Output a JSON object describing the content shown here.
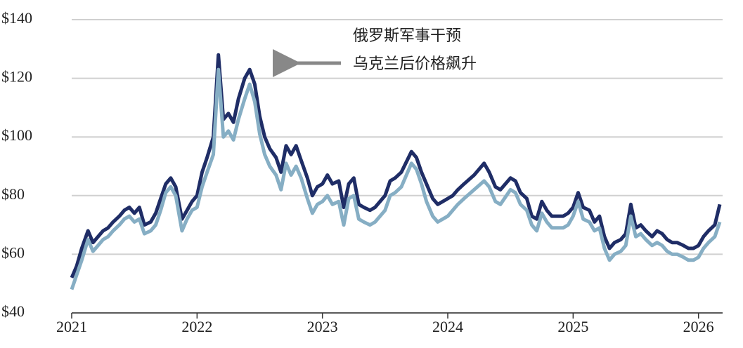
{
  "chart_data": {
    "type": "line",
    "annotation": [
      "俄罗斯军事干预",
      "乌克兰后价格飙升"
    ],
    "x": [
      2021.0,
      2021.04,
      2021.08,
      2021.13,
      2021.17,
      2021.21,
      2021.25,
      2021.29,
      2021.33,
      2021.38,
      2021.42,
      2021.46,
      2021.5,
      2021.54,
      2021.58,
      2021.63,
      2021.67,
      2021.71,
      2021.75,
      2021.79,
      2021.83,
      2021.88,
      2021.92,
      2021.96,
      2022.0,
      2022.04,
      2022.08,
      2022.13,
      2022.17,
      2022.21,
      2022.25,
      2022.29,
      2022.33,
      2022.38,
      2022.42,
      2022.46,
      2022.5,
      2022.54,
      2022.58,
      2022.63,
      2022.67,
      2022.71,
      2022.75,
      2022.79,
      2022.83,
      2022.88,
      2022.92,
      2022.96,
      2023.0,
      2023.04,
      2023.08,
      2023.13,
      2023.17,
      2023.21,
      2023.25,
      2023.29,
      2023.33,
      2023.38,
      2023.42,
      2023.5,
      2023.54,
      2023.58,
      2023.63,
      2023.71,
      2023.75,
      2023.79,
      2023.83,
      2023.88,
      2023.92,
      2023.96,
      2024.0,
      2024.04,
      2024.08,
      2024.13,
      2024.21,
      2024.29,
      2024.33,
      2024.38,
      2024.42,
      2024.5,
      2024.54,
      2024.58,
      2024.63,
      2024.67,
      2024.71,
      2024.75,
      2024.79,
      2024.83,
      2024.88,
      2024.92,
      2024.96,
      2025.0,
      2025.04,
      2025.08,
      2025.13,
      2025.17,
      2025.21,
      2025.25,
      2025.29,
      2025.33,
      2025.38,
      2025.42,
      2025.46,
      2025.5,
      2025.54,
      2025.58,
      2025.63,
      2025.67,
      2025.71,
      2025.75,
      2025.79,
      2025.83,
      2025.88,
      2025.92,
      2025.96,
      2026.0,
      2026.04,
      2026.08,
      2026.13,
      2026.17
    ],
    "series": [
      {
        "color": "#1f2d66",
        "values": [
          52,
          56,
          62,
          68,
          64,
          66,
          68,
          69,
          71,
          73,
          75,
          76,
          74,
          76,
          70,
          71,
          74,
          79,
          84,
          86,
          83,
          72,
          75,
          78,
          80,
          88,
          93,
          100,
          128,
          106,
          108,
          105,
          113,
          120,
          123,
          118,
          107,
          100,
          96,
          93,
          88,
          97,
          94,
          97,
          92,
          86,
          80,
          83,
          84,
          87,
          84,
          85,
          76,
          84,
          86,
          77,
          76,
          75,
          76,
          80,
          85,
          86,
          88,
          95,
          93,
          88,
          84,
          79,
          77,
          78,
          79,
          80,
          82,
          84,
          87,
          91,
          88,
          83,
          82,
          86,
          85,
          81,
          79,
          73,
          72,
          78,
          75,
          73,
          73,
          73,
          74,
          76,
          81,
          76,
          75,
          71,
          73,
          66,
          62,
          64,
          65,
          67,
          77,
          69,
          70,
          68,
          66,
          68,
          67,
          65,
          64,
          64,
          63,
          62,
          62,
          63,
          66,
          68,
          70,
          77
        ]
      },
      {
        "color": "#86aec4",
        "values": [
          48,
          53,
          58,
          65,
          61,
          63,
          65,
          66,
          68,
          70,
          72,
          73,
          71,
          72,
          67,
          68,
          70,
          75,
          81,
          83,
          80,
          68,
          72,
          75,
          76,
          83,
          88,
          94,
          123,
          100,
          102,
          99,
          106,
          113,
          118,
          112,
          101,
          94,
          90,
          87,
          82,
          91,
          87,
          90,
          86,
          79,
          74,
          77,
          78,
          80,
          77,
          78,
          70,
          79,
          80,
          72,
          71,
          70,
          71,
          75,
          80,
          81,
          83,
          91,
          89,
          84,
          78,
          73,
          71,
          72,
          73,
          75,
          77,
          79,
          82,
          85,
          83,
          78,
          77,
          82,
          81,
          77,
          75,
          70,
          68,
          74,
          71,
          69,
          69,
          69,
          70,
          73,
          78,
          72,
          71,
          68,
          69,
          62,
          58,
          60,
          61,
          63,
          73,
          66,
          67,
          65,
          63,
          64,
          63,
          61,
          60,
          60,
          59,
          58,
          58,
          59,
          62,
          64,
          66,
          71
        ]
      }
    ],
    "xlim": [
      2021,
      2026.17
    ],
    "xticks": [
      2021,
      2022,
      2023,
      2024,
      2025,
      2026
    ],
    "ylim": [
      40,
      140
    ],
    "yticks": [
      {
        "value": 40,
        "label": "$40"
      },
      {
        "value": 60,
        "label": "$60"
      },
      {
        "value": 80,
        "label": "$80"
      },
      {
        "value": 100,
        "label": "$100"
      },
      {
        "value": 120,
        "label": "$120"
      },
      {
        "value": 140,
        "label": "$140"
      }
    ],
    "grid": true
  }
}
